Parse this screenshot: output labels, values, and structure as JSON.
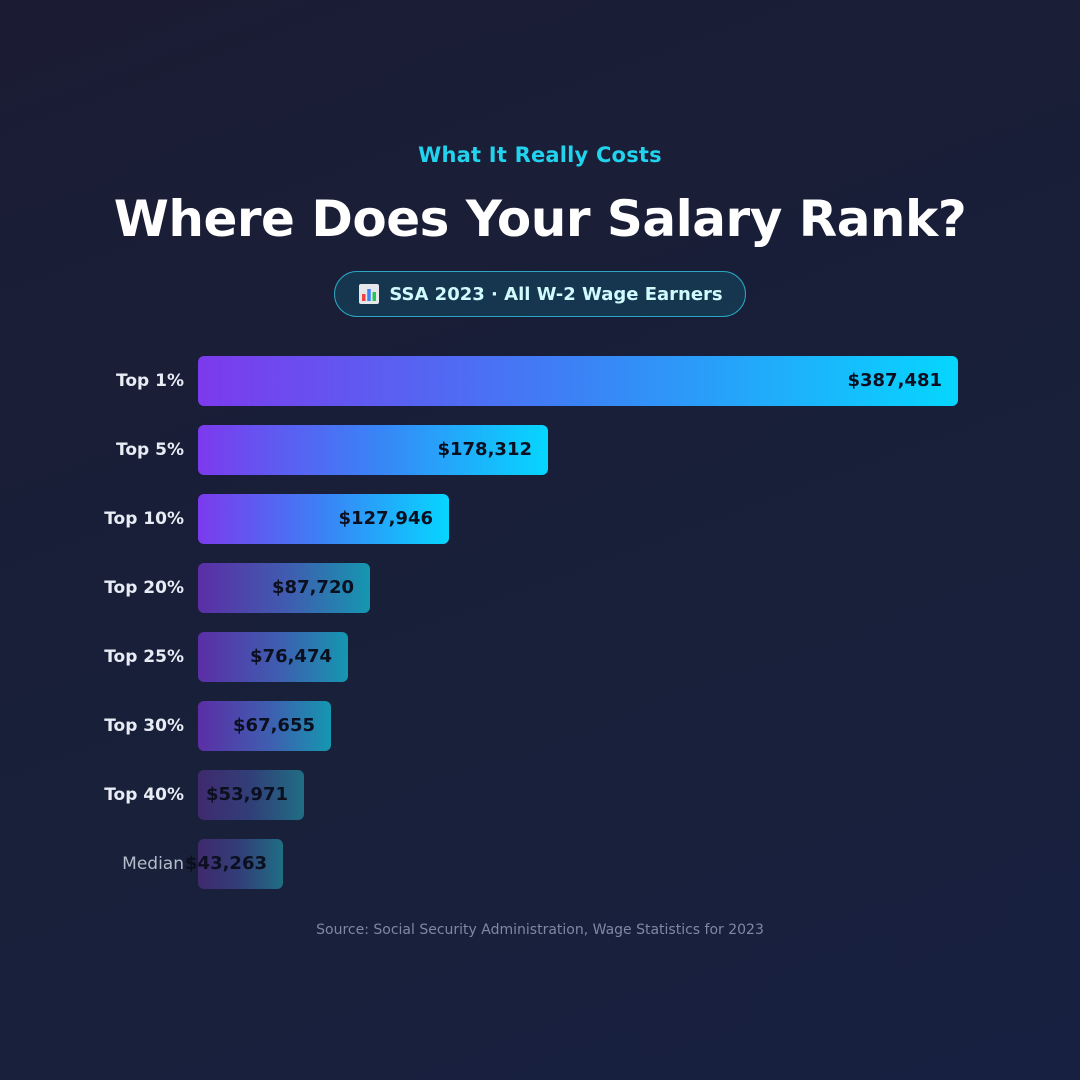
{
  "header": {
    "kicker": "What It Really Costs",
    "title": "Where Does Your Salary Rank?",
    "badge": "SSA 2023 · All W-2 Wage Earners",
    "badge_icon": "bar-chart-icon"
  },
  "chart_data": {
    "type": "bar",
    "orientation": "horizontal",
    "categories": [
      "Top 1%",
      "Top 5%",
      "Top 10%",
      "Top 20%",
      "Top 25%",
      "Top 30%",
      "Top 40%",
      "Median"
    ],
    "values": [
      387481,
      178312,
      127946,
      87720,
      76474,
      67655,
      53971,
      43263
    ],
    "value_labels": [
      "$387,481",
      "$178,312",
      "$127,946",
      "$87,720",
      "$76,474",
      "$67,655",
      "$53,971",
      "$43,263"
    ],
    "tiers": [
      "t1",
      "t1",
      "t1",
      "t2",
      "t2",
      "t2",
      "t3",
      "t3"
    ],
    "title": "Where Does Your Salary Rank?",
    "xlabel": "",
    "ylabel": "",
    "grid": false,
    "legend": "none"
  },
  "footer": {
    "source": "Source: Social Security Administration, Wage Statistics for 2023"
  },
  "colors": {
    "accent": "#22d3ee",
    "bar_start": "#7c3aed",
    "bar_end": "#06d6ff",
    "background": "#1b1c34"
  }
}
